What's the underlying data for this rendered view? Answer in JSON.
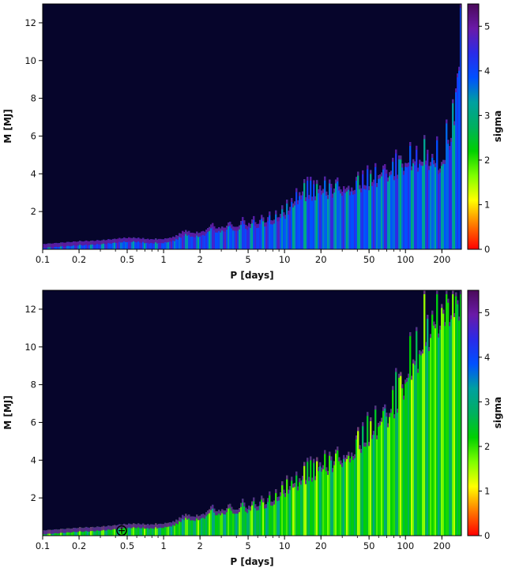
{
  "colors": {
    "background": "#06052b",
    "colormap": [
      "#ff0000",
      "#ff7a00",
      "#ffff00",
      "#7fff00",
      "#00d000",
      "#00b060",
      "#00a0a0",
      "#0050ff",
      "#2a2ae8",
      "#6a1aa8",
      "#4a0a5a"
    ]
  },
  "chart_data": [
    {
      "type": "heatmap",
      "xlabel": "P [days]",
      "ylabel": "M [MJ]",
      "xscale": "log",
      "xlim": [
        0.1,
        290
      ],
      "ylim": [
        0,
        13
      ],
      "xticks": [
        0.1,
        0.2,
        0.5,
        1,
        2,
        5,
        10,
        20,
        50,
        100,
        200
      ],
      "xtick_labels": [
        "0.1",
        "0.2",
        "0.5",
        "1",
        "2",
        "5",
        "10",
        "20",
        "50",
        "100",
        "200"
      ],
      "yticks": [
        2,
        4,
        6,
        8,
        10,
        12
      ],
      "ytick_labels": [
        "2",
        "4",
        "6",
        "8",
        "10",
        "12"
      ],
      "colorbar": {
        "label": "sigma",
        "range": [
          0,
          5.5
        ],
        "ticks": [
          0,
          1,
          2,
          3,
          4,
          5
        ],
        "tick_labels": [
          "0",
          "1",
          "2",
          "3",
          "4",
          "5"
        ]
      },
      "detection_limit": {
        "P": [
          0.1,
          0.2,
          0.5,
          1,
          1.5,
          2,
          3,
          5,
          8,
          10,
          12,
          13,
          15,
          20,
          30,
          50,
          70,
          100,
          150,
          200,
          250,
          290
        ],
        "M": [
          0.3,
          0.45,
          0.5,
          0.6,
          0.8,
          1.0,
          1.2,
          1.4,
          1.7,
          2.0,
          2.5,
          3.0,
          3.1,
          3.2,
          3.4,
          3.7,
          4.2,
          4.7,
          5.0,
          4.7,
          7.0,
          12.5
        ]
      },
      "base_sigma": 4.0,
      "marker": null
    },
    {
      "type": "heatmap",
      "xlabel": "P [days]",
      "ylabel": "M [MJ]",
      "xscale": "log",
      "xlim": [
        0.1,
        290
      ],
      "ylim": [
        0,
        13
      ],
      "xticks": [
        0.1,
        0.2,
        0.5,
        1,
        2,
        5,
        10,
        20,
        50,
        100,
        200
      ],
      "xtick_labels": [
        "0.1",
        "0.2",
        "0.5",
        "1",
        "2",
        "5",
        "10",
        "20",
        "50",
        "100",
        "200"
      ],
      "yticks": [
        2,
        4,
        6,
        8,
        10,
        12
      ],
      "ytick_labels": [
        "2",
        "4",
        "6",
        "8",
        "10",
        "12"
      ],
      "colorbar": {
        "label": "sigma",
        "range": [
          0,
          5.5
        ],
        "ticks": [
          0,
          1,
          2,
          3,
          4,
          5
        ],
        "tick_labels": [
          "0",
          "1",
          "2",
          "3",
          "4",
          "5"
        ]
      },
      "detection_limit": {
        "P": [
          0.1,
          0.2,
          0.5,
          1,
          1.5,
          2,
          3,
          5,
          8,
          10,
          12,
          15,
          20,
          30,
          50,
          70,
          100,
          150,
          200,
          250,
          290
        ],
        "M": [
          0.3,
          0.45,
          0.5,
          0.7,
          0.9,
          1.2,
          1.4,
          1.6,
          2.0,
          2.5,
          2.8,
          3.3,
          3.7,
          4.3,
          5.5,
          6.5,
          8.5,
          11.0,
          12.5,
          13.0,
          13.0
        ]
      },
      "base_sigma": 2.4,
      "marker": {
        "P": 0.45,
        "M": 0.1
      }
    }
  ]
}
